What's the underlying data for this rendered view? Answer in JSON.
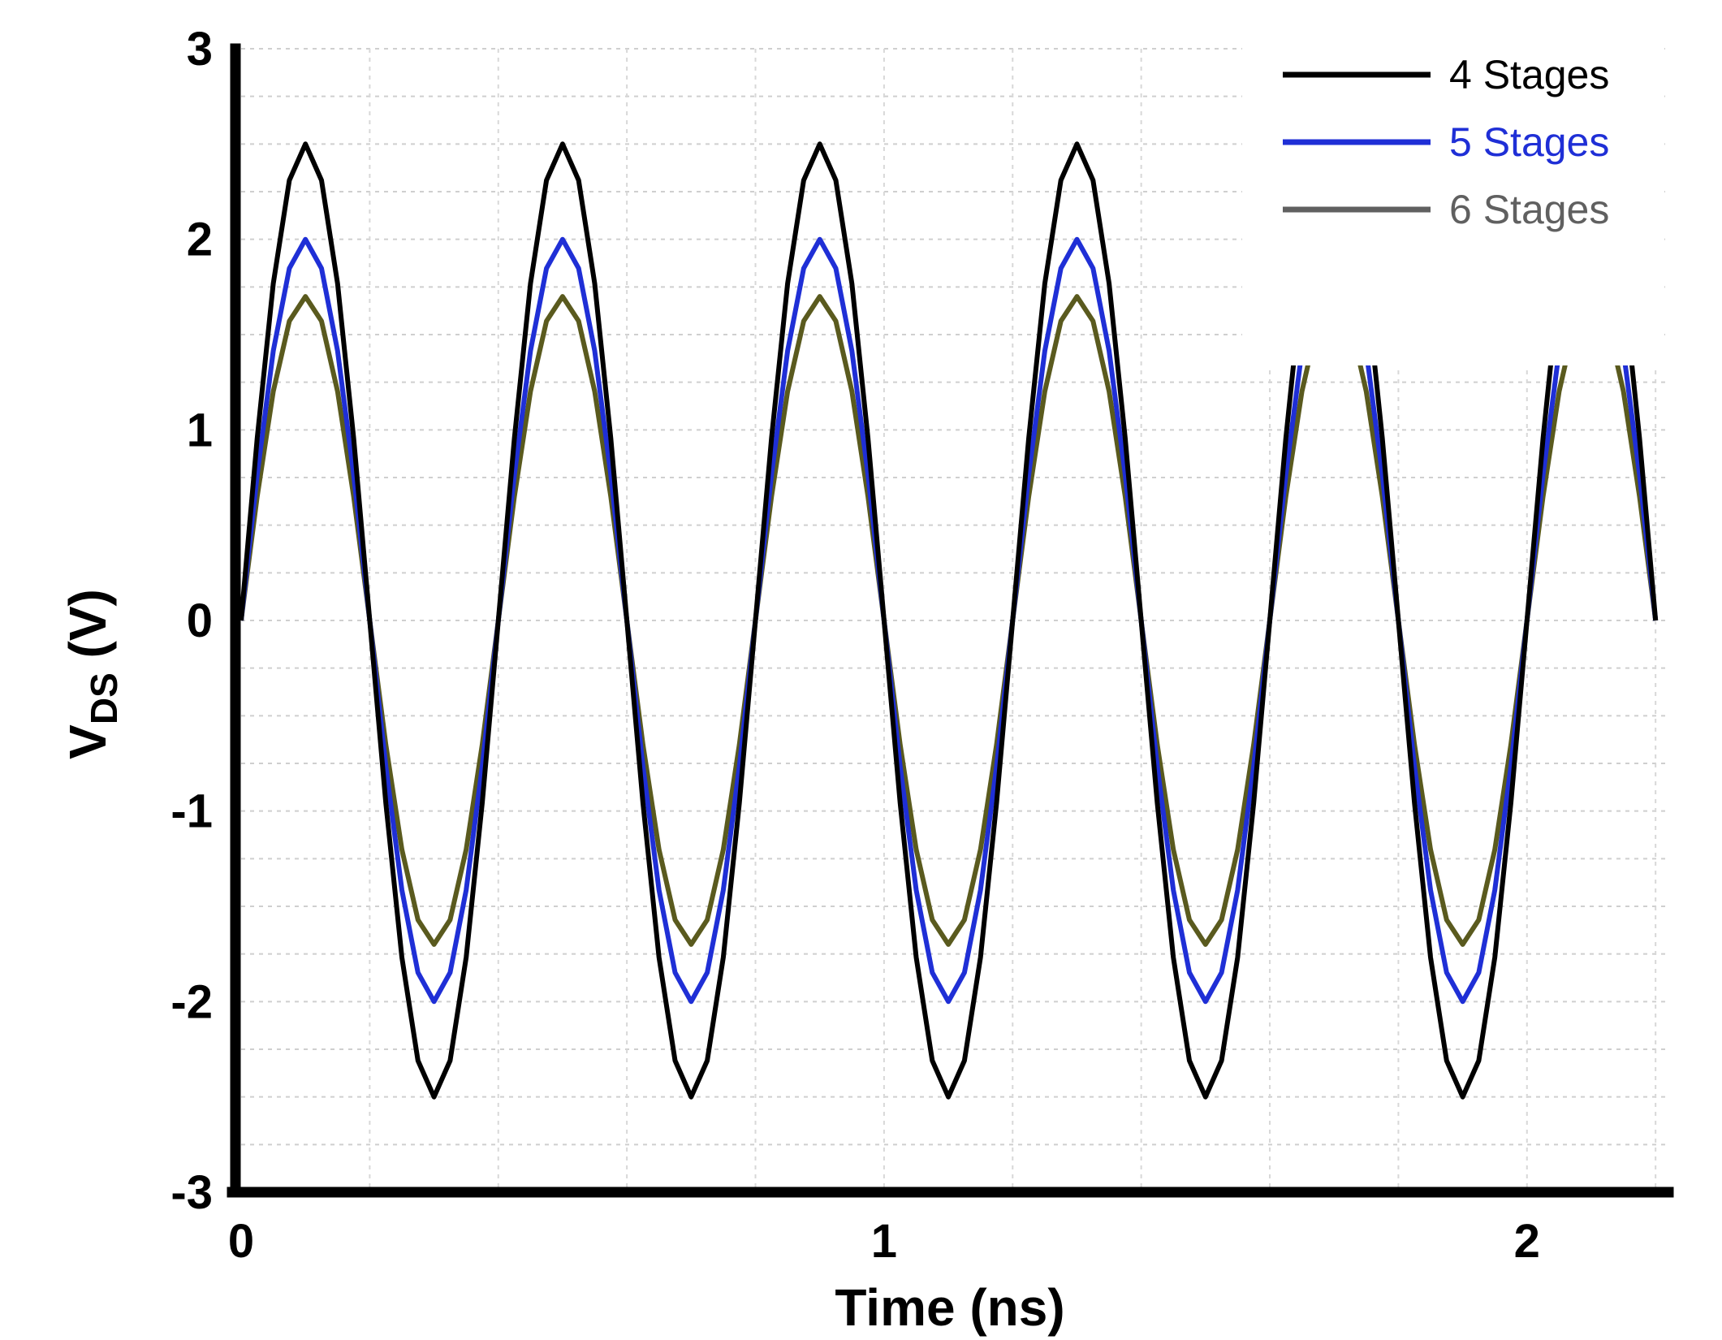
{
  "chart_data": {
    "type": "line",
    "title": "",
    "xlabel": "Time (ns)",
    "ylabel": {
      "main": "V",
      "subscript": "DS",
      "unit": " (V)"
    },
    "xlim": [
      0,
      2.22
    ],
    "ylim": [
      -3,
      3
    ],
    "x_ticks": [
      0,
      1,
      2
    ],
    "x_tick_labels": [
      "0",
      "1",
      "2"
    ],
    "y_ticks": [
      3,
      2,
      1,
      0,
      -1,
      -2,
      -3
    ],
    "y_tick_labels": [
      "3",
      "2",
      "1",
      "0",
      "-1",
      "-2",
      "-3"
    ],
    "grid": true,
    "legend_position": "top-right",
    "period_ns": 0.4,
    "series": [
      {
        "name": "4 Stages",
        "color": "#000000",
        "legend_color": "#000000",
        "amplitude": 2.5
      },
      {
        "name": "5 Stages",
        "color": "#1f2fd6",
        "legend_color": "#1f2fd6",
        "amplitude": 2.0
      },
      {
        "name": "6 Stages",
        "color": "#5a5a1e",
        "legend_color": "#606060",
        "amplitude": 1.7
      }
    ]
  }
}
